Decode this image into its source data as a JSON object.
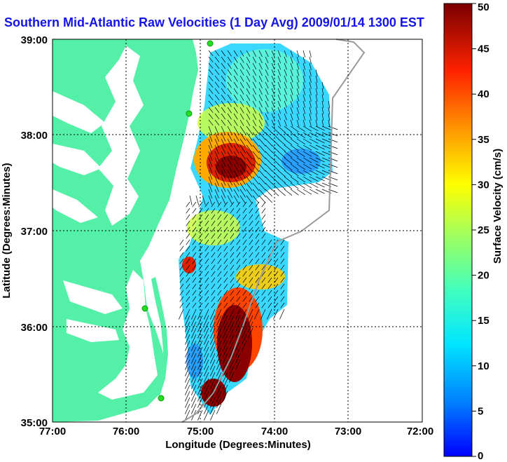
{
  "title": "Southern Mid-Atlantic Raw Velocities (1 Day Avg) 2009/01/14 1300 EST",
  "x_axis": {
    "label": "Longitude (Degrees:Minutes)",
    "ticks": [
      "77:00",
      "76:00",
      "75:00",
      "74:00",
      "73:00",
      "72:00"
    ]
  },
  "y_axis": {
    "label": "Latitude (Degrees:Minutes)",
    "ticks": [
      "35:00",
      "36:00",
      "37:00",
      "38:00",
      "39:00"
    ]
  },
  "colorbar": {
    "label": "Surface Velocity (cm/s)",
    "ticks": [
      "0",
      "5",
      "10",
      "15",
      "20",
      "25",
      "30",
      "35",
      "40",
      "45",
      "50"
    ],
    "range": [
      0,
      50
    ],
    "colormap": "jet"
  },
  "map": {
    "lon_range": [
      -77.0,
      -72.0
    ],
    "lat_range": [
      35.0,
      39.0
    ],
    "gridlines": true,
    "land_color": "#55f0a8",
    "station_color": "#22dd22"
  }
}
